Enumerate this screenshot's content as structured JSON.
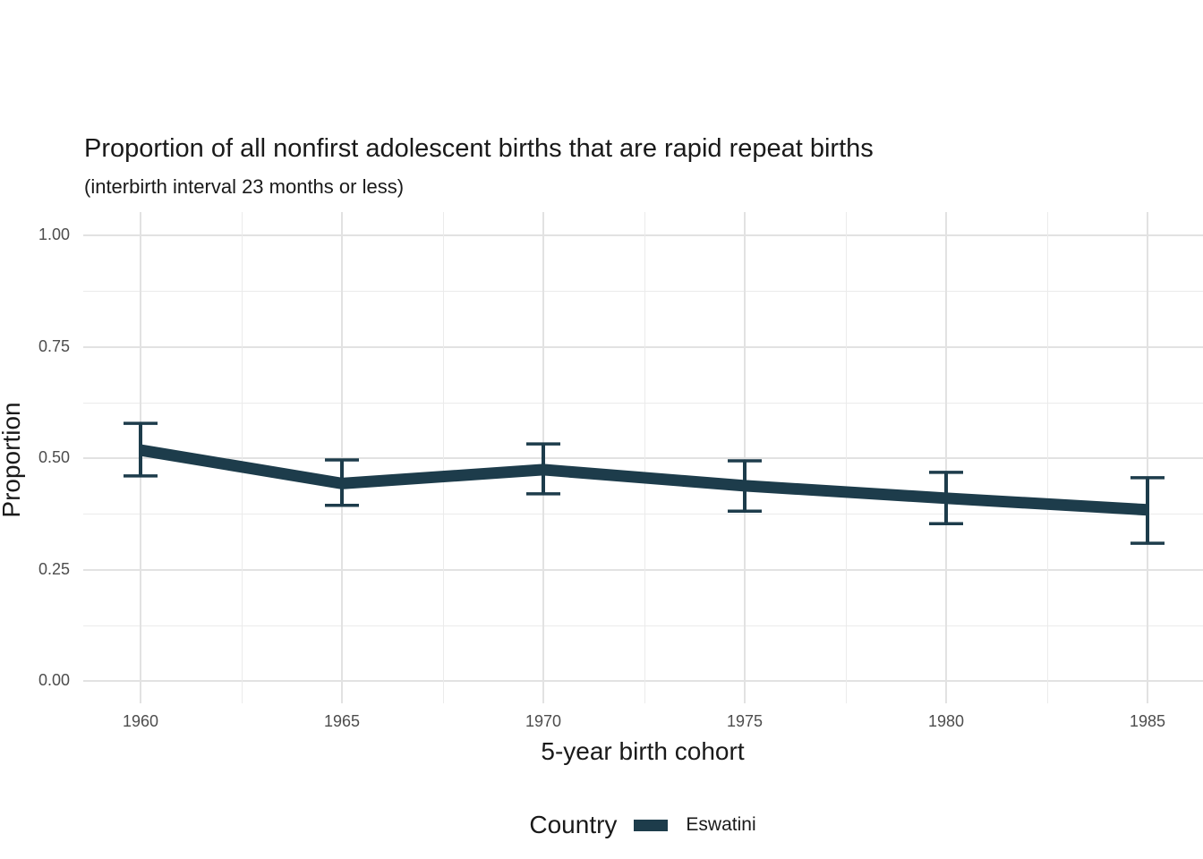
{
  "chart_data": {
    "type": "line",
    "title": "Proportion of all nonfirst adolescent births that are rapid repeat births",
    "subtitle": "(interbirth interval 23 months or less)",
    "xlabel": "5-year birth cohort",
    "ylabel": "Proportion",
    "xlim": [
      1958.6,
      1986.4
    ],
    "ylim": [
      -0.05,
      1.05
    ],
    "x_ticks": [
      1960,
      1965,
      1970,
      1975,
      1980,
      1985
    ],
    "x_tick_labels": [
      "1960",
      "1965",
      "1970",
      "1975",
      "1980",
      "1985"
    ],
    "y_ticks": [
      0.0,
      0.25,
      0.5,
      0.75,
      1.0
    ],
    "y_tick_labels": [
      "0.00",
      "0.25",
      "0.50",
      "0.75",
      "1.00"
    ],
    "grid": "major and minor gridlines, no axis lines, no tick marks",
    "legend_position": "bottom",
    "legend_title": "Country",
    "colors": {
      "series": "#1d3c4b",
      "grid_major": "#e2e2e2",
      "grid_minor": "#ebebeb",
      "tick_text": "#4d4d4d",
      "background": "#ffffff"
    },
    "series": [
      {
        "name": "Eswatini",
        "color": "#1d3c4b",
        "x": [
          1960,
          1965,
          1970,
          1975,
          1980,
          1985
        ],
        "y": [
          0.518,
          0.443,
          0.474,
          0.438,
          0.41,
          0.384
        ],
        "ci_low": [
          0.46,
          0.394,
          0.42,
          0.381,
          0.353,
          0.309
        ],
        "ci_high": [
          0.578,
          0.496,
          0.532,
          0.494,
          0.468,
          0.456
        ],
        "error_bars": true
      }
    ]
  }
}
